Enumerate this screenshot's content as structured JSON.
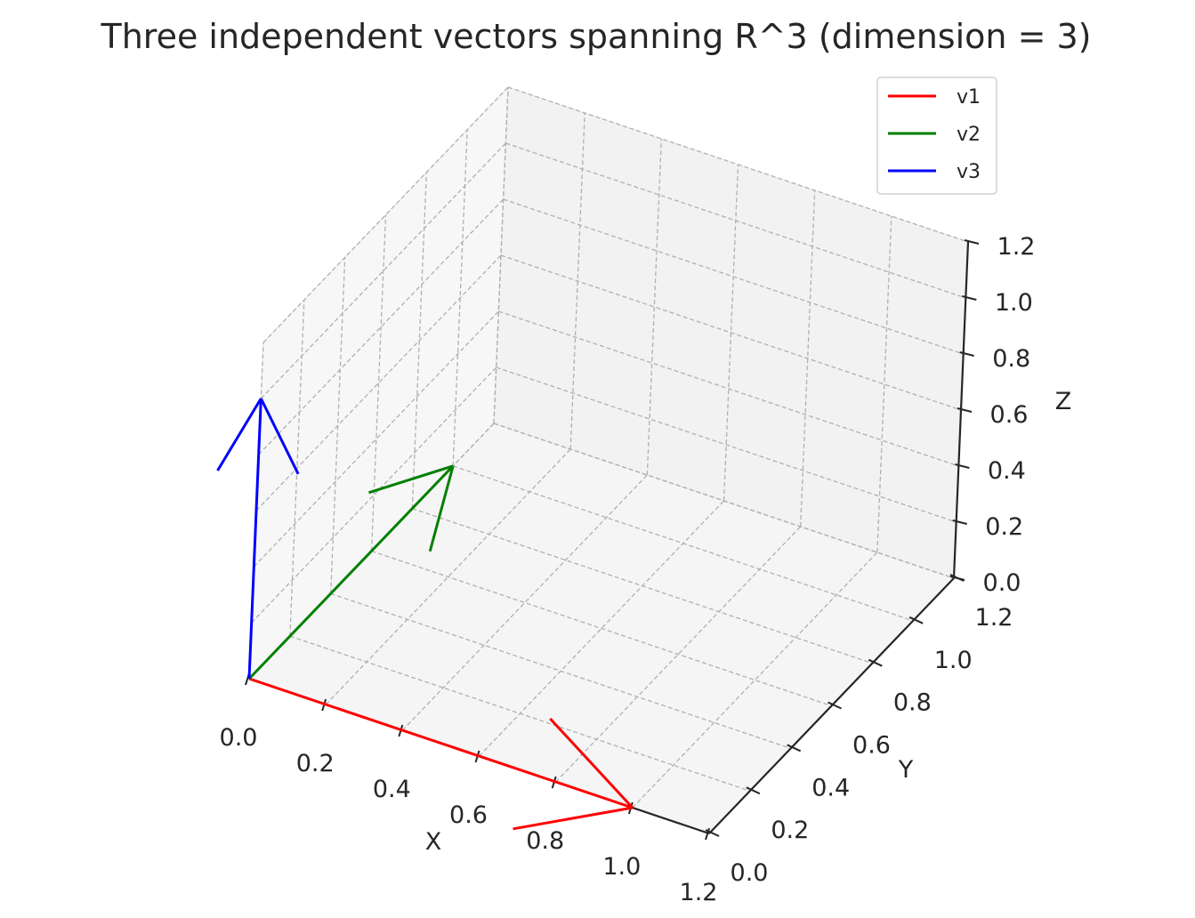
{
  "chart_data": {
    "type": "line",
    "projection": "3d",
    "title": "Three independent vectors spanning R^3 (dimension = 3)",
    "xlabel": "X",
    "ylabel": "Y",
    "zlabel": "Z",
    "xlim": [
      0,
      1.2
    ],
    "ylim": [
      0,
      1.2
    ],
    "zlim": [
      0,
      1.2
    ],
    "xticks": [
      "0.0",
      "0.2",
      "0.4",
      "0.6",
      "0.8",
      "1.0",
      "1.2"
    ],
    "yticks": [
      "0.0",
      "0.2",
      "0.4",
      "0.6",
      "0.8",
      "1.0",
      "1.2"
    ],
    "zticks": [
      "0.0",
      "0.2",
      "0.4",
      "0.6",
      "0.8",
      "1.0",
      "1.2"
    ],
    "grid": true,
    "legend_position": "top-right",
    "series": [
      {
        "name": "v1",
        "color": "#ff0000",
        "origin": [
          0,
          0,
          0
        ],
        "vector": [
          1,
          0,
          0
        ]
      },
      {
        "name": "v2",
        "color": "#008000",
        "origin": [
          0,
          0,
          0
        ],
        "vector": [
          0,
          1,
          0
        ]
      },
      {
        "name": "v3",
        "color": "#0000ff",
        "origin": [
          0,
          0,
          0
        ],
        "vector": [
          0,
          0,
          1
        ]
      }
    ]
  }
}
